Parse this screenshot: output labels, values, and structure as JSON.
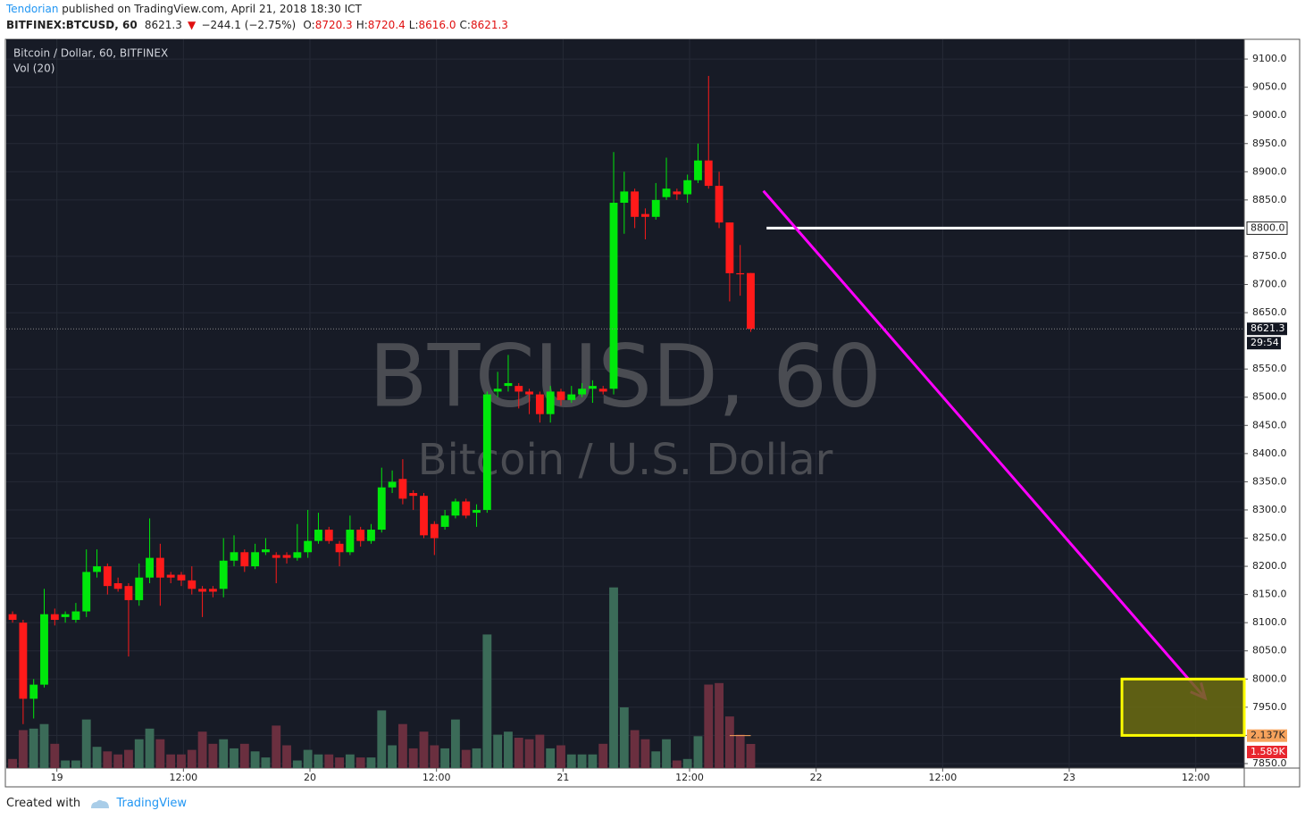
{
  "header": {
    "author": "Tendorian",
    "published": "published on TradingView.com, April 21, 2018 18:30 ICT",
    "symbol": "BITFINEX:BTCUSD, 60",
    "last": "8621.3",
    "arrow": "▼",
    "change": "−244.1 (−2.75%)",
    "ohlc": [
      {
        "key": "O:",
        "value": "8720.3"
      },
      {
        "key": "H:",
        "value": "8720.4"
      },
      {
        "key": "L:",
        "value": "8616.0"
      },
      {
        "key": "C:",
        "value": "8621.3"
      }
    ]
  },
  "footer": {
    "created": "Created with",
    "brand": "TradingView"
  },
  "chart_data": {
    "type": "candlestick",
    "title": "Bitcoin / Dollar, 60, BITFINEX",
    "volume_title": "Vol (20)",
    "watermark": [
      "BTCUSD, 60",
      "Bitcoin / U.S. Dollar"
    ],
    "countdown": "29:54",
    "up_color": "#00e80b",
    "down_color": "#ff1a1a",
    "open": [
      8115,
      8100,
      7965,
      7990,
      8115,
      8110,
      8105,
      8120,
      8190,
      8200,
      8170,
      8165,
      8140,
      8180,
      8215,
      8185,
      8185,
      8175,
      8160,
      8160,
      8160,
      8210,
      8225,
      8200,
      8225,
      8220,
      8220,
      8215,
      8225,
      8245,
      8265,
      8240,
      8225,
      8265,
      8245,
      8265,
      8340,
      8355,
      8330,
      8325,
      8275,
      8270,
      8290,
      8315,
      8295,
      8300,
      8510,
      8520,
      8520,
      8510,
      8505,
      8470,
      8510,
      8495,
      8505,
      8515,
      8515,
      8515,
      8845,
      8865,
      8825,
      8820,
      8855,
      8865,
      8860,
      8885,
      8920,
      8875,
      8810,
      8720,
      8720.3
    ],
    "high": [
      8120,
      8105,
      8000,
      8160,
      8125,
      8120,
      8135,
      8230,
      8230,
      8205,
      8180,
      8170,
      8205,
      8285,
      8240,
      8190,
      8190,
      8200,
      8165,
      8165,
      8250,
      8255,
      8230,
      8240,
      8250,
      8225,
      8225,
      8275,
      8300,
      8295,
      8270,
      8245,
      8290,
      8270,
      8275,
      8375,
      8370,
      8390,
      8335,
      8330,
      8280,
      8300,
      8320,
      8320,
      8310,
      8510,
      8545,
      8575,
      8525,
      8515,
      8510,
      8520,
      8515,
      8520,
      8525,
      8530,
      8520,
      8935,
      8900,
      8870,
      8835,
      8880,
      8925,
      8870,
      8895,
      8950,
      9070,
      8900,
      8810,
      8770,
      8720.4
    ],
    "low": [
      8100,
      7920,
      7930,
      7985,
      8095,
      8100,
      8100,
      8110,
      8180,
      8150,
      8155,
      8040,
      8130,
      8170,
      8130,
      8170,
      8165,
      8150,
      8110,
      8145,
      8145,
      8200,
      8190,
      8195,
      8220,
      8170,
      8205,
      8210,
      8215,
      8240,
      8240,
      8200,
      8220,
      8235,
      8240,
      8260,
      8330,
      8310,
      8300,
      8250,
      8220,
      8265,
      8285,
      8285,
      8270,
      8295,
      8500,
      8510,
      8480,
      8470,
      8455,
      8455,
      8485,
      8490,
      8500,
      8490,
      8505,
      8505,
      8790,
      8800,
      8780,
      8815,
      8850,
      8850,
      8845,
      8880,
      8870,
      8800,
      8670,
      8680,
      8616
    ],
    "close": [
      8105,
      7965,
      7990,
      8115,
      8105,
      8115,
      8120,
      8190,
      8200,
      8165,
      8160,
      8140,
      8180,
      8215,
      8180,
      8180,
      8175,
      8160,
      8155,
      8155,
      8210,
      8225,
      8200,
      8225,
      8230,
      8215,
      8215,
      8225,
      8245,
      8265,
      8245,
      8225,
      8265,
      8245,
      8265,
      8340,
      8350,
      8320,
      8325,
      8255,
      8250,
      8290,
      8315,
      8290,
      8300,
      8505,
      8515,
      8525,
      8510,
      8505,
      8470,
      8510,
      8495,
      8505,
      8515,
      8520,
      8510,
      8845,
      8865,
      8820,
      8820,
      8850,
      8870,
      8860,
      8885,
      8920,
      8875,
      8810,
      8720,
      8718,
      8621.3
    ],
    "volume": {
      "values": [
        0.6,
        2.5,
        2.6,
        2.9,
        1.6,
        0.5,
        0.5,
        3.2,
        1.4,
        1.1,
        0.9,
        1.2,
        1.9,
        2.6,
        1.9,
        0.9,
        0.9,
        1.2,
        2.4,
        1.6,
        1.9,
        1.3,
        1.6,
        1.1,
        0.7,
        2.8,
        1.5,
        0.5,
        1.2,
        0.9,
        0.9,
        0.7,
        0.9,
        0.7,
        0.7,
        3.8,
        1.5,
        2.9,
        1.3,
        2.4,
        1.5,
        1.3,
        3.2,
        1.2,
        1.3,
        8.8,
        2.2,
        2.4,
        2.0,
        1.9,
        2.2,
        1.3,
        1.5,
        0.9,
        0.9,
        0.9,
        1.6,
        11.9,
        4.0,
        2.5,
        1.9,
        1.1,
        1.9,
        0.5,
        0.6,
        2.1,
        5.5,
        5.6,
        3.4,
        2.2,
        1.589
      ],
      "last_label": "1.589K",
      "ylim": [
        0,
        48
      ],
      "up_color": "#3b6b58",
      "down_color": "#6a2f3f",
      "ma_last": {
        "value": 2.137,
        "label": "2.137K"
      },
      "ma_color": "#f7a35c"
    },
    "xlim": [
      -0.6,
      116.8
    ],
    "xticks": [
      {
        "value": 4.2,
        "label": "19"
      },
      {
        "value": 16.2,
        "label": "12:00"
      },
      {
        "value": 28.2,
        "label": "20"
      },
      {
        "value": 40.2,
        "label": "12:00"
      },
      {
        "value": 52.2,
        "label": "21"
      },
      {
        "value": 64.2,
        "label": "12:00"
      },
      {
        "value": 76.2,
        "label": "22"
      },
      {
        "value": 88.2,
        "label": "12:00"
      },
      {
        "value": 100.2,
        "label": "23"
      },
      {
        "value": 112.2,
        "label": "12:00"
      }
    ],
    "ylim": [
      7842,
      9135
    ],
    "yticks": [
      {
        "value": 7850,
        "label": "7850.0"
      },
      {
        "value": 7900,
        "label": "7900.0"
      },
      {
        "value": 7950,
        "label": "7950.0"
      },
      {
        "value": 8000,
        "label": "8000.0"
      },
      {
        "value": 8050,
        "label": "8050.0"
      },
      {
        "value": 8100,
        "label": "8100.0"
      },
      {
        "value": 8150,
        "label": "8150.0"
      },
      {
        "value": 8200,
        "label": "8200.0"
      },
      {
        "value": 8250,
        "label": "8250.0"
      },
      {
        "value": 8300,
        "label": "8300.0"
      },
      {
        "value": 8350,
        "label": "8350.0"
      },
      {
        "value": 8400,
        "label": "8400.0"
      },
      {
        "value": 8450,
        "label": "8450.0"
      },
      {
        "value": 8500,
        "label": "8500.0"
      },
      {
        "value": 8550,
        "label": "8550.0"
      },
      {
        "value": 8650,
        "label": "8650.0"
      },
      {
        "value": 8700,
        "label": "8700.0"
      },
      {
        "value": 8750,
        "label": "8750.0"
      },
      {
        "value": 8850,
        "label": "8850.0"
      },
      {
        "value": 8900,
        "label": "8900.0"
      },
      {
        "value": 8950,
        "label": "8950.0"
      },
      {
        "value": 9000,
        "label": "9000.0"
      },
      {
        "value": 9050,
        "label": "9050.0"
      },
      {
        "value": 9100,
        "label": "9100.0"
      }
    ],
    "grid": true,
    "hline": {
      "value": 8800,
      "label": "8800.0",
      "from_x": 71.5,
      "color": "#ffffff"
    },
    "arrow": {
      "x": [
        71.2,
        113.1
      ],
      "y": [
        8866,
        7966
      ],
      "color": "#ff00ff"
    },
    "box": {
      "x": [
        105.2,
        116.8
      ],
      "y": [
        7900,
        8000
      ],
      "color": "#ffff00",
      "fill": "#6b6b12"
    }
  }
}
